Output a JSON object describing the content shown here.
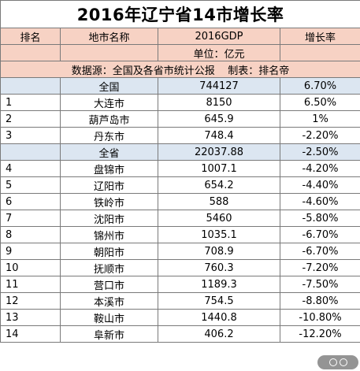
{
  "title": "2016年辽宁省14市增长率",
  "headers": {
    "rank": "排名",
    "name": "地市名称",
    "gdp": "2016GDP",
    "growth": "增长率"
  },
  "unit": "单位：亿元",
  "source": "数据源：全国及各省市统计公报    制表：排名帝",
  "rows": [
    {
      "rank": "",
      "name": "全国",
      "gdp": "744127",
      "growth": "6.70%",
      "summary": true
    },
    {
      "rank": "1",
      "name": "大连市",
      "gdp": "8150",
      "growth": "6.50%"
    },
    {
      "rank": "2",
      "name": "葫芦岛市",
      "gdp": "645.9",
      "growth": "1%"
    },
    {
      "rank": "3",
      "name": "丹东市",
      "gdp": "748.4",
      "growth": "-2.20%"
    },
    {
      "rank": "",
      "name": "全省",
      "gdp": "22037.88",
      "growth": "-2.50%",
      "summary": true
    },
    {
      "rank": "4",
      "name": "盘锦市",
      "gdp": "1007.1",
      "growth": "-4.20%"
    },
    {
      "rank": "5",
      "name": "辽阳市",
      "gdp": "654.2",
      "growth": "-4.40%"
    },
    {
      "rank": "6",
      "name": "铁岭市",
      "gdp": "588",
      "growth": "-4.60%"
    },
    {
      "rank": "7",
      "name": "沈阳市",
      "gdp": "5460",
      "growth": "-5.80%"
    },
    {
      "rank": "8",
      "name": "锦州市",
      "gdp": "1035.1",
      "growth": "-6.70%"
    },
    {
      "rank": "9",
      "name": "朝阳市",
      "gdp": "708.9",
      "growth": "-6.70%"
    },
    {
      "rank": "10",
      "name": "抚顺市",
      "gdp": "760.3",
      "growth": "-7.20%"
    },
    {
      "rank": "11",
      "name": "营口市",
      "gdp": "1189.3",
      "growth": "-7.50%"
    },
    {
      "rank": "12",
      "name": "本溪市",
      "gdp": "754.5",
      "growth": "-8.80%"
    },
    {
      "rank": "13",
      "name": "鞍山市",
      "gdp": "1440.8",
      "growth": "-10.80%"
    },
    {
      "rank": "14",
      "name": "阜新市",
      "gdp": "406.2",
      "growth": "-12.20%"
    }
  ],
  "colors": {
    "header_bg": "#f7d2c4",
    "summary_bg": "#dce6f1",
    "grid": "#7a7a7a"
  },
  "watermark_icon": "camera-icon"
}
